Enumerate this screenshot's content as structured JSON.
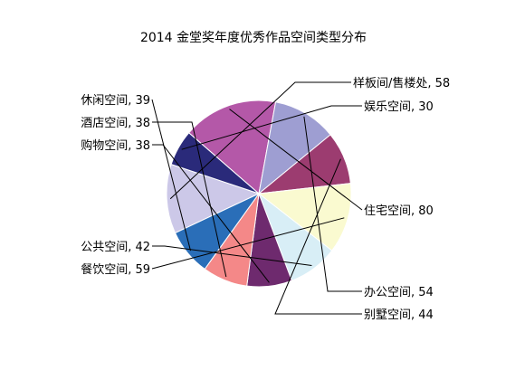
{
  "chart_data": {
    "type": "pie",
    "title": "2014 金堂奖年度优秀作品空间类型分布",
    "slices": [
      {
        "label": "样板间/售楼处",
        "value": 58,
        "color": "#ccc8e8"
      },
      {
        "label": "娱乐空间",
        "value": 30,
        "color": "#2a2a7a"
      },
      {
        "label": "住宅空间",
        "value": 80,
        "color": "#b458a8"
      },
      {
        "label": "办公空间",
        "value": 54,
        "color": "#9e9ed2"
      },
      {
        "label": "别墅空间",
        "value": 44,
        "color": "#9c3c70"
      },
      {
        "label": "餐饮空间",
        "value": 59,
        "color": "#fafad0"
      },
      {
        "label": "公共空间",
        "value": 42,
        "color": "#d8eef6"
      },
      {
        "label": "购物空间",
        "value": 38,
        "color": "#6e2a6e"
      },
      {
        "label": "酒店空间",
        "value": 38,
        "color": "#f48888"
      },
      {
        "label": "休闲空间",
        "value": 39,
        "color": "#2a6eb8"
      }
    ],
    "label_format": "{label}, {value}",
    "grid": false,
    "legend": "none"
  }
}
